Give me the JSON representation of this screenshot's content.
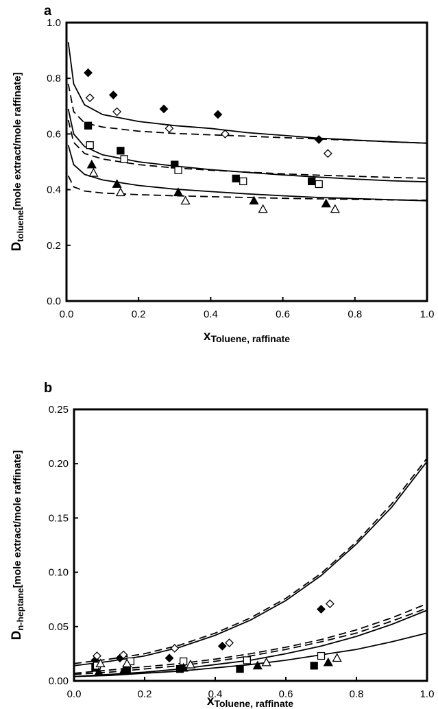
{
  "chart_data": [
    {
      "type": "scatter",
      "panel_label": "a",
      "xlabel_main": "x",
      "xlabel_sub": "Toluene, raffinate",
      "ylabel_main": "D",
      "ylabel_sub": "toluene",
      "ylabel_rest": "[mole extract/mole raffinate]",
      "xlim": [
        0,
        1
      ],
      "ylim": [
        0,
        1
      ],
      "xticks": [
        "0.0",
        "0.2",
        "0.4",
        "0.6",
        "0.8",
        "1.0"
      ],
      "yticks": [
        "0.0",
        "0.2",
        "0.4",
        "0.6",
        "0.8",
        "1.0"
      ],
      "grid": false,
      "series": [
        {
          "marker": "diamond",
          "filled": true,
          "x": [
            0.06,
            0.13,
            0.27,
            0.42,
            0.7
          ],
          "y": [
            0.82,
            0.74,
            0.69,
            0.67,
            0.58
          ]
        },
        {
          "marker": "diamond",
          "filled": false,
          "x": [
            0.065,
            0.14,
            0.285,
            0.44,
            0.725
          ],
          "y": [
            0.73,
            0.68,
            0.62,
            0.6,
            0.53
          ]
        },
        {
          "marker": "square",
          "filled": true,
          "x": [
            0.06,
            0.15,
            0.3,
            0.47,
            0.68
          ],
          "y": [
            0.63,
            0.54,
            0.49,
            0.44,
            0.43
          ]
        },
        {
          "marker": "square",
          "filled": false,
          "x": [
            0.065,
            0.16,
            0.31,
            0.49,
            0.7
          ],
          "y": [
            0.56,
            0.51,
            0.47,
            0.43,
            0.42
          ]
        },
        {
          "marker": "triangle",
          "filled": true,
          "x": [
            0.07,
            0.14,
            0.31,
            0.52,
            0.72
          ],
          "y": [
            0.49,
            0.42,
            0.39,
            0.36,
            0.35
          ]
        },
        {
          "marker": "triangle",
          "filled": false,
          "x": [
            0.075,
            0.15,
            0.33,
            0.545,
            0.745
          ],
          "y": [
            0.46,
            0.39,
            0.36,
            0.33,
            0.33
          ]
        }
      ],
      "curves": [
        {
          "style": "solid",
          "x": [
            0.005,
            0.02,
            0.05,
            0.1,
            0.2,
            0.3,
            0.4,
            0.5,
            0.6,
            0.7,
            0.8,
            0.9,
            1.0
          ],
          "y": [
            0.93,
            0.78,
            0.705,
            0.67,
            0.645,
            0.63,
            0.62,
            0.605,
            0.595,
            0.585,
            0.578,
            0.572,
            0.567
          ]
        },
        {
          "style": "dashed",
          "x": [
            0.005,
            0.02,
            0.05,
            0.1,
            0.2,
            0.3,
            0.4,
            0.5,
            0.6,
            0.7,
            0.8,
            0.9,
            1.0
          ],
          "y": [
            0.78,
            0.68,
            0.64,
            0.625,
            0.61,
            0.602,
            0.597,
            0.592,
            0.587,
            0.582,
            0.577,
            0.572,
            0.567
          ]
        },
        {
          "style": "solid",
          "x": [
            0.005,
            0.02,
            0.05,
            0.1,
            0.2,
            0.3,
            0.4,
            0.5,
            0.6,
            0.7,
            0.8,
            0.9,
            1.0
          ],
          "y": [
            0.69,
            0.6,
            0.555,
            0.525,
            0.5,
            0.485,
            0.472,
            0.462,
            0.453,
            0.445,
            0.438,
            0.432,
            0.428
          ]
        },
        {
          "style": "dashed",
          "x": [
            0.005,
            0.02,
            0.05,
            0.1,
            0.2,
            0.3,
            0.4,
            0.5,
            0.6,
            0.7,
            0.8,
            0.9,
            1.0
          ],
          "y": [
            0.65,
            0.57,
            0.53,
            0.51,
            0.49,
            0.478,
            0.47,
            0.463,
            0.457,
            0.452,
            0.448,
            0.444,
            0.441
          ]
        },
        {
          "style": "solid",
          "x": [
            0.005,
            0.02,
            0.05,
            0.1,
            0.2,
            0.3,
            0.4,
            0.5,
            0.6,
            0.7,
            0.8,
            0.9,
            1.0
          ],
          "y": [
            0.56,
            0.49,
            0.455,
            0.435,
            0.415,
            0.402,
            0.393,
            0.385,
            0.378,
            0.372,
            0.368,
            0.364,
            0.36
          ]
        },
        {
          "style": "dashed",
          "x": [
            0.005,
            0.02,
            0.05,
            0.1,
            0.2,
            0.3,
            0.4,
            0.5,
            0.6,
            0.7,
            0.8,
            0.9,
            1.0
          ],
          "y": [
            0.45,
            0.41,
            0.395,
            0.388,
            0.382,
            0.378,
            0.375,
            0.372,
            0.369,
            0.367,
            0.365,
            0.363,
            0.362
          ]
        }
      ]
    },
    {
      "type": "scatter",
      "panel_label": "b",
      "xlabel_main": "x",
      "xlabel_sub": "Toluene, raffinate",
      "ylabel_main": "D",
      "ylabel_sub": "n-heptane",
      "ylabel_rest": "[mole extract/mole raffinate]",
      "xlim": [
        0,
        1
      ],
      "ylim": [
        0,
        0.25
      ],
      "xticks": [
        "0.0",
        "0.2",
        "0.4",
        "0.6",
        "0.8",
        "1.0"
      ],
      "yticks": [
        "0.00",
        "0.05",
        "0.10",
        "0.15",
        "0.20",
        "0.25"
      ],
      "grid": false,
      "series": [
        {
          "marker": "diamond",
          "filled": true,
          "x": [
            0.06,
            0.13,
            0.27,
            0.42,
            0.7
          ],
          "y": [
            0.019,
            0.021,
            0.021,
            0.032,
            0.066
          ]
        },
        {
          "marker": "diamond",
          "filled": false,
          "x": [
            0.065,
            0.14,
            0.285,
            0.44,
            0.725
          ],
          "y": [
            0.023,
            0.024,
            0.03,
            0.035,
            0.071
          ]
        },
        {
          "marker": "square",
          "filled": true,
          "x": [
            0.06,
            0.15,
            0.3,
            0.47,
            0.68
          ],
          "y": [
            0.012,
            0.01,
            0.011,
            0.011,
            0.014
          ]
        },
        {
          "marker": "square",
          "filled": false,
          "x": [
            0.065,
            0.16,
            0.31,
            0.49,
            0.7
          ],
          "y": [
            0.014,
            0.018,
            0.018,
            0.019,
            0.023
          ]
        },
        {
          "marker": "triangle",
          "filled": true,
          "x": [
            0.07,
            0.14,
            0.31,
            0.52,
            0.72
          ],
          "y": [
            0.008,
            0.009,
            0.012,
            0.014,
            0.017
          ]
        },
        {
          "marker": "triangle",
          "filled": false,
          "x": [
            0.075,
            0.15,
            0.33,
            0.545,
            0.745
          ],
          "y": [
            0.016,
            0.016,
            0.015,
            0.017,
            0.021
          ]
        }
      ],
      "curves": [
        {
          "style": "solid",
          "x": [
            0,
            0.1,
            0.2,
            0.3,
            0.4,
            0.5,
            0.6,
            0.7,
            0.8,
            0.9,
            1.0
          ],
          "y": [
            0.014,
            0.018,
            0.023,
            0.031,
            0.042,
            0.056,
            0.074,
            0.097,
            0.126,
            0.16,
            0.202
          ]
        },
        {
          "style": "dashed",
          "x": [
            0,
            0.1,
            0.2,
            0.3,
            0.4,
            0.5,
            0.6,
            0.7,
            0.8,
            0.9,
            1.0
          ],
          "y": [
            0.016,
            0.02,
            0.025,
            0.033,
            0.044,
            0.058,
            0.076,
            0.099,
            0.128,
            0.163,
            0.205
          ]
        },
        {
          "style": "solid",
          "x": [
            0,
            0.1,
            0.2,
            0.3,
            0.4,
            0.5,
            0.6,
            0.7,
            0.8,
            0.9,
            1.0
          ],
          "y": [
            0.004,
            0.006,
            0.008,
            0.011,
            0.015,
            0.019,
            0.025,
            0.032,
            0.041,
            0.052,
            0.065
          ]
        },
        {
          "style": "dashed",
          "x": [
            0,
            0.1,
            0.2,
            0.3,
            0.4,
            0.5,
            0.6,
            0.7,
            0.8,
            0.9,
            1.0
          ],
          "y": [
            0.007,
            0.01,
            0.013,
            0.016,
            0.02,
            0.025,
            0.031,
            0.038,
            0.047,
            0.058,
            0.071
          ]
        },
        {
          "style": "dashed",
          "x": [
            0,
            0.1,
            0.2,
            0.3,
            0.4,
            0.5,
            0.6,
            0.7,
            0.8,
            0.9,
            1.0
          ],
          "y": [
            0.006,
            0.008,
            0.011,
            0.014,
            0.018,
            0.023,
            0.029,
            0.036,
            0.044,
            0.055,
            0.067
          ]
        },
        {
          "style": "solid",
          "x": [
            0,
            0.1,
            0.2,
            0.3,
            0.4,
            0.5,
            0.6,
            0.7,
            0.8,
            0.9,
            1.0
          ],
          "y": [
            0.004,
            0.005,
            0.007,
            0.009,
            0.012,
            0.015,
            0.019,
            0.024,
            0.029,
            0.036,
            0.044
          ]
        }
      ]
    }
  ]
}
